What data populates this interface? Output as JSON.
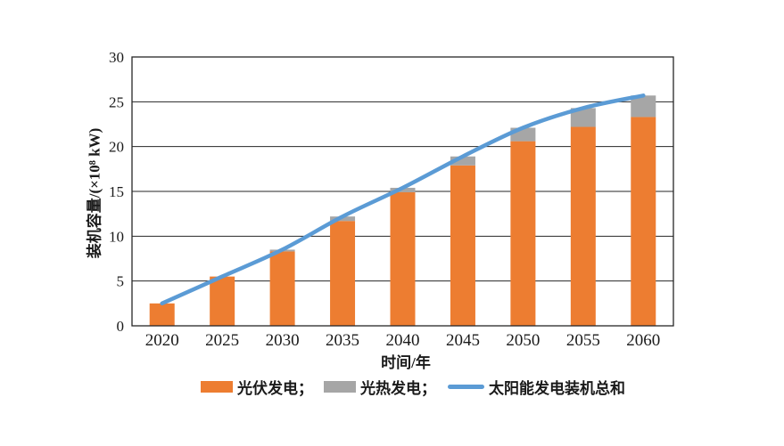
{
  "figure": {
    "xlabel": "时间/年",
    "ylabel": "装机容量/(×10⁸ kW)"
  },
  "legend": {
    "items": [
      {
        "label": "光伏发电；",
        "color": "#ED7D31",
        "swatch": "bar"
      },
      {
        "label": "光热发电；",
        "color": "#A6A6A6",
        "swatch": "bar"
      },
      {
        "label": "太阳能发电装机总和",
        "color": "#5B9BD5",
        "swatch": "line"
      }
    ]
  },
  "chart_data": {
    "type": "bar",
    "stacked": true,
    "title": "",
    "xlabel": "时间/年",
    "ylabel": "装机容量/(×10⁸ kW)",
    "categories": [
      "2020",
      "2025",
      "2030",
      "2035",
      "2040",
      "2045",
      "2050",
      "2055",
      "2060"
    ],
    "series": [
      {
        "name": "光伏发电",
        "type": "bar",
        "color": "#ED7D31",
        "values": [
          2.5,
          5.5,
          8.3,
          11.7,
          14.9,
          17.9,
          20.6,
          22.2,
          23.3
        ]
      },
      {
        "name": "光热发电",
        "type": "bar",
        "color": "#A6A6A6",
        "values": [
          0,
          0,
          0.2,
          0.5,
          0.5,
          1.0,
          1.5,
          2.1,
          2.4
        ]
      },
      {
        "name": "太阳能发电装机总和",
        "type": "line",
        "smooth": true,
        "color": "#5B9BD5",
        "values": [
          2.5,
          5.5,
          8.5,
          12.2,
          15.4,
          18.9,
          22.1,
          24.3,
          25.7
        ]
      }
    ],
    "ylim": [
      0,
      30
    ],
    "yticks": [
      0,
      5,
      10,
      15,
      20,
      25,
      30
    ],
    "grid": true,
    "plot_border": true,
    "legend_position": "bottom",
    "axis_color": "#262626",
    "unit": "×10⁸ kW"
  }
}
